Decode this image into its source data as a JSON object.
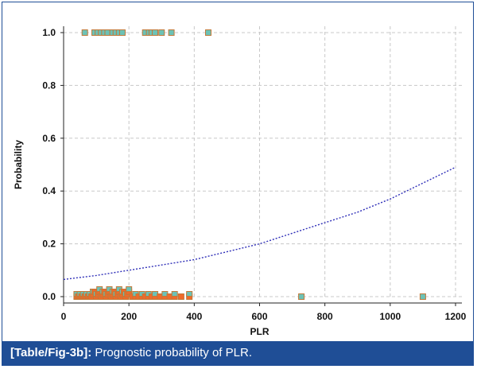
{
  "caption": {
    "tag": "[Table/Fig-3b]:",
    "text": "Prognostic probability of PLR."
  },
  "colors": {
    "frame": "#1f4e96",
    "point_fill": "#6cc2b6",
    "point_stroke": "#c0793a",
    "dense_fill": "#f06a2a",
    "curve": "#3030b8",
    "grid": "#c8c8c8"
  },
  "chart_data": {
    "type": "scatter",
    "xlabel": "PLR",
    "ylabel": "Probability",
    "xlim": [
      0,
      1200
    ],
    "ylim": [
      0,
      1
    ],
    "xticks": [
      0,
      200,
      400,
      600,
      800,
      1000,
      1200
    ],
    "yticks": [
      0.0,
      0.2,
      0.4,
      0.6,
      0.8,
      1.0
    ],
    "ytick_labels": [
      "0.0",
      "0.2",
      "0.4",
      "0.6",
      "0.8",
      "1.0"
    ],
    "grid": true,
    "series": [
      {
        "values_y": 1.0,
        "x": [
          65,
          95,
          105,
          115,
          125,
          135,
          150,
          160,
          170,
          180,
          250,
          262,
          270,
          280,
          300,
          330,
          443
        ]
      },
      {
        "values_y": 0.0,
        "x": [
          40,
          45,
          50,
          55,
          60,
          65,
          70,
          75,
          80,
          85,
          90,
          95,
          100,
          105,
          110,
          115,
          120,
          125,
          130,
          135,
          140,
          145,
          150,
          155,
          160,
          165,
          170,
          175,
          180,
          185,
          190,
          195,
          200,
          210,
          220,
          230,
          240,
          250,
          260,
          270,
          280,
          295,
          310,
          325,
          340,
          360,
          385,
          728,
          1100
        ]
      }
    ],
    "fit_curve": {
      "x": [
        0,
        100,
        200,
        300,
        400,
        500,
        600,
        700,
        800,
        900,
        1000,
        1100,
        1200
      ],
      "y": [
        0.065,
        0.08,
        0.1,
        0.12,
        0.14,
        0.17,
        0.2,
        0.24,
        0.28,
        0.32,
        0.37,
        0.43,
        0.49
      ]
    }
  }
}
